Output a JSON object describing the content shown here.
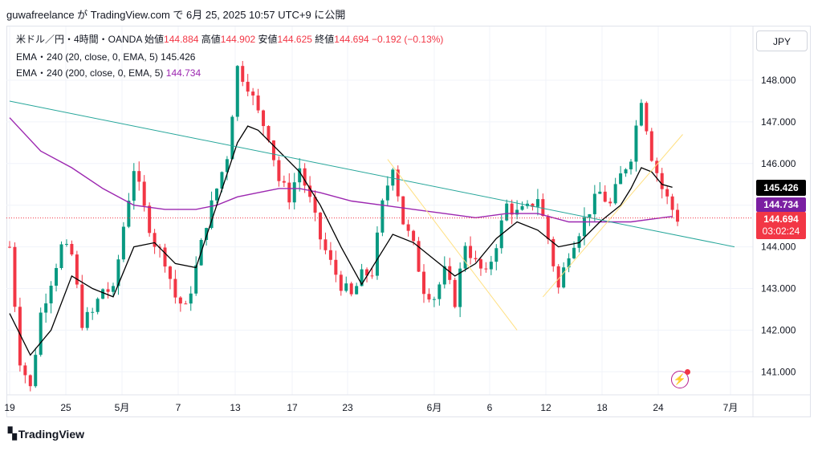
{
  "header": {
    "text": "guwafreelance が TradingView.com で 6月 25, 2025 10:57 UTC+9 に公開"
  },
  "legend": {
    "symbol": "米ドル／円・4時間・OANDA",
    "open_label": "始値",
    "open": "144.884",
    "high_label": "高値",
    "high": "144.902",
    "low_label": "安値",
    "low": "144.625",
    "close_label": "終値",
    "close": "144.694",
    "change": "−0.192 (−0.13%)",
    "ema1_label": "EMA・240 (20, close, 0, EMA, 5)",
    "ema1_value": "145.426",
    "ema2_label": "EMA・240 (200, close, 0, EMA, 5)",
    "ema2_value": "144.734"
  },
  "currency_button": "JPY",
  "price_tags": {
    "ema20": "145.426",
    "ema200": "144.734",
    "last": "144.694",
    "countdown": "03:02:24"
  },
  "brand": "TradingView",
  "colors": {
    "up": "#089981",
    "down": "#f23645",
    "ema20": "#000000",
    "ema200": "#9c27b0",
    "trendline": "#26a69a",
    "triangle": "#ffe082",
    "grid": "#f0f3fa"
  },
  "chart_data": {
    "type": "candlestick",
    "symbol": "USD/JPY",
    "interval": "4h",
    "y_ticks": [
      "141.000",
      "142.000",
      "143.000",
      "144.000",
      "145.000",
      "146.000",
      "147.000",
      "148.000"
    ],
    "ylim": [
      140.45,
      149.1
    ],
    "x_ticks": [
      "19",
      "25",
      "5月",
      "7",
      "13",
      "17",
      "23",
      "6月",
      "6",
      "12",
      "18",
      "24",
      "7月"
    ],
    "price_path": [
      [
        0,
        144.0
      ],
      [
        2,
        141.3
      ],
      [
        4,
        140.6
      ],
      [
        6,
        142.4
      ],
      [
        8,
        143.2
      ],
      [
        10,
        144.0
      ],
      [
        12,
        143.8
      ],
      [
        14,
        142.2
      ],
      [
        16,
        142.4
      ],
      [
        18,
        143.0
      ],
      [
        20,
        142.9
      ],
      [
        22,
        144.5
      ],
      [
        24,
        145.9
      ],
      [
        26,
        144.9
      ],
      [
        28,
        144.1
      ],
      [
        30,
        143.7
      ],
      [
        32,
        142.8
      ],
      [
        34,
        142.5
      ],
      [
        36,
        143.5
      ],
      [
        38,
        144.6
      ],
      [
        40,
        145.4
      ],
      [
        42,
        146.2
      ],
      [
        44,
        148.3
      ],
      [
        46,
        147.9
      ],
      [
        48,
        147.2
      ],
      [
        50,
        146.7
      ],
      [
        52,
        145.6
      ],
      [
        54,
        145.2
      ],
      [
        56,
        145.9
      ],
      [
        58,
        145.1
      ],
      [
        60,
        144.2
      ],
      [
        62,
        143.6
      ],
      [
        64,
        143.1
      ],
      [
        66,
        142.8
      ],
      [
        68,
        143.3
      ],
      [
        70,
        143.4
      ],
      [
        72,
        145.0
      ],
      [
        74,
        146.0
      ],
      [
        76,
        144.6
      ],
      [
        78,
        144.0
      ],
      [
        80,
        143.0
      ],
      [
        82,
        142.8
      ],
      [
        84,
        143.4
      ],
      [
        86,
        142.7
      ],
      [
        88,
        144.1
      ],
      [
        90,
        143.6
      ],
      [
        92,
        143.3
      ],
      [
        94,
        144.1
      ],
      [
        96,
        145.0
      ],
      [
        98,
        144.8
      ],
      [
        100,
        144.9
      ],
      [
        102,
        145.2
      ],
      [
        104,
        144.2
      ],
      [
        106,
        143.0
      ],
      [
        108,
        143.9
      ],
      [
        110,
        144.4
      ],
      [
        112,
        144.9
      ],
      [
        114,
        145.3
      ],
      [
        116,
        145.0
      ],
      [
        118,
        145.7
      ],
      [
        120,
        146.2
      ],
      [
        122,
        147.6
      ],
      [
        124,
        146.2
      ],
      [
        126,
        145.4
      ],
      [
        128,
        144.9
      ],
      [
        129,
        144.69
      ]
    ],
    "ema20": [
      [
        0,
        142.4
      ],
      [
        4,
        141.4
      ],
      [
        8,
        142.0
      ],
      [
        12,
        143.3
      ],
      [
        16,
        143.0
      ],
      [
        20,
        142.8
      ],
      [
        24,
        144.0
      ],
      [
        28,
        144.1
      ],
      [
        32,
        143.6
      ],
      [
        36,
        143.5
      ],
      [
        40,
        145.0
      ],
      [
        44,
        146.5
      ],
      [
        46,
        146.9
      ],
      [
        48,
        146.8
      ],
      [
        52,
        146.3
      ],
      [
        56,
        145.8
      ],
      [
        60,
        145.0
      ],
      [
        64,
        144.0
      ],
      [
        68,
        143.1
      ],
      [
        72,
        143.9
      ],
      [
        74,
        144.3
      ],
      [
        78,
        144.1
      ],
      [
        82,
        143.7
      ],
      [
        86,
        143.3
      ],
      [
        90,
        143.6
      ],
      [
        94,
        144.2
      ],
      [
        98,
        144.6
      ],
      [
        102,
        144.4
      ],
      [
        106,
        144.0
      ],
      [
        110,
        144.1
      ],
      [
        114,
        144.6
      ],
      [
        118,
        145.0
      ],
      [
        120,
        145.4
      ],
      [
        122,
        145.9
      ],
      [
        124,
        145.8
      ],
      [
        126,
        145.5
      ],
      [
        128,
        145.43
      ]
    ],
    "ema200": [
      [
        0,
        147.1
      ],
      [
        6,
        146.3
      ],
      [
        12,
        145.9
      ],
      [
        18,
        145.4
      ],
      [
        24,
        145.0
      ],
      [
        30,
        144.9
      ],
      [
        36,
        144.9
      ],
      [
        40,
        145.0
      ],
      [
        44,
        145.2
      ],
      [
        48,
        145.3
      ],
      [
        52,
        145.4
      ],
      [
        56,
        145.4
      ],
      [
        60,
        145.3
      ],
      [
        66,
        145.1
      ],
      [
        72,
        145.0
      ],
      [
        78,
        144.9
      ],
      [
        84,
        144.8
      ],
      [
        90,
        144.7
      ],
      [
        96,
        144.8
      ],
      [
        102,
        144.8
      ],
      [
        108,
        144.6
      ],
      [
        114,
        144.6
      ],
      [
        120,
        144.6
      ],
      [
        126,
        144.7
      ],
      [
        128,
        144.73
      ]
    ],
    "trendline": [
      [
        0,
        147.5
      ],
      [
        140,
        144.0
      ]
    ],
    "yellow_lines": [
      [
        [
          73,
          146.1
        ],
        [
          98,
          142.0
        ]
      ],
      [
        [
          103,
          142.8
        ],
        [
          130,
          146.7
        ]
      ]
    ],
    "ema20_last": 145.426,
    "ema200_last": 144.734,
    "last_price": 144.694
  }
}
